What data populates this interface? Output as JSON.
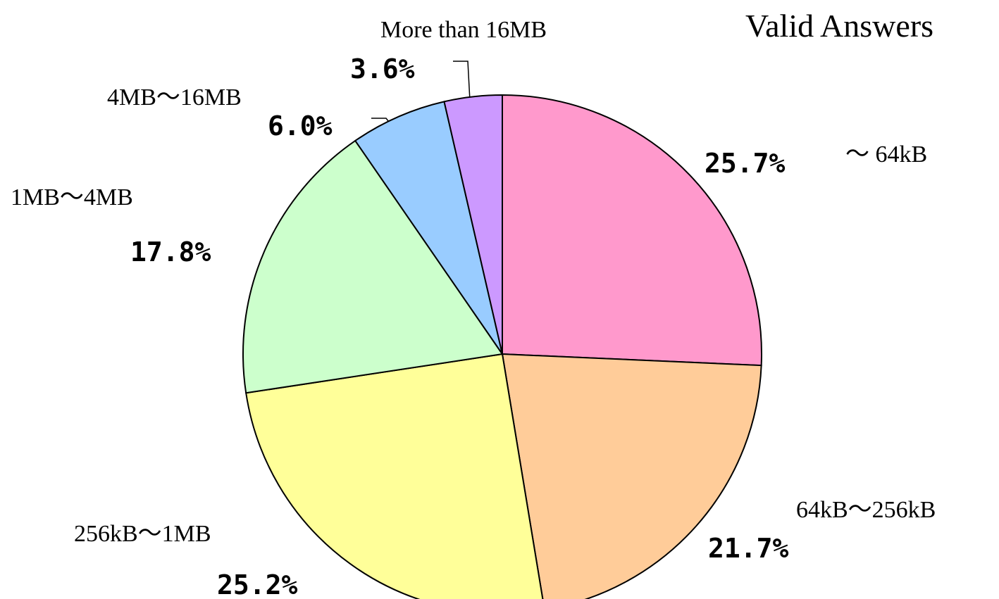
{
  "chart_data": {
    "type": "pie",
    "title": "Valid Answers",
    "categories": [
      "～ 64kB",
      "64kB～256kB",
      "256kB～1MB",
      "1MB～4MB",
      "4MB～16MB",
      "More than 16MB"
    ],
    "values": [
      25.7,
      21.7,
      25.2,
      17.8,
      6.0,
      3.6
    ],
    "value_labels": [
      "25.7%",
      "21.7%",
      "25.2%",
      "17.8%",
      "6.0%",
      "3.6%"
    ],
    "colors": [
      "#ff99cc",
      "#ffcc99",
      "#ffff99",
      "#ccffcc",
      "#99ccff",
      "#cc99ff"
    ]
  }
}
